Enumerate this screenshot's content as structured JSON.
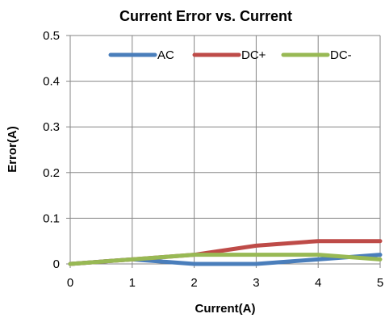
{
  "chart_data": {
    "type": "line",
    "title": "Current Error vs. Current",
    "xlabel": "Current(A)",
    "ylabel": "Error(A)",
    "x": [
      0,
      1,
      2,
      3,
      4,
      5
    ],
    "xlim": [
      0,
      5
    ],
    "ylim": [
      0,
      0.5
    ],
    "xticks": [
      "0",
      "1",
      "2",
      "3",
      "4",
      "5"
    ],
    "yticks": [
      "0",
      "0.1",
      "0.2",
      "0.3",
      "0.4",
      "0.5"
    ],
    "grid": true,
    "legend": "top-right",
    "series": [
      {
        "name": "AC",
        "color": "#4a7ebb",
        "values": [
          0,
          0.01,
          0,
          0,
          0.01,
          0.02
        ]
      },
      {
        "name": "DC+",
        "color": "#be4b48",
        "values": [
          0,
          0.01,
          0.02,
          0.04,
          0.05,
          0.05
        ]
      },
      {
        "name": "DC-",
        "color": "#98b954",
        "values": [
          0,
          0.01,
          0.02,
          0.02,
          0.02,
          0.01
        ]
      }
    ]
  }
}
